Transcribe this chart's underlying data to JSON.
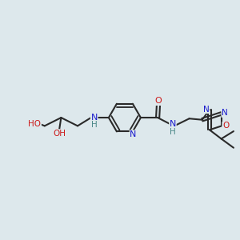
{
  "bg_color": "#dde8ec",
  "bond_color": "#2a2a2a",
  "bond_width": 1.5,
  "atom_colors": {
    "C": "#2a2a2a",
    "N": "#1a1acc",
    "O": "#cc1a1a",
    "H": "#4a8888"
  },
  "font_size": 7.5
}
